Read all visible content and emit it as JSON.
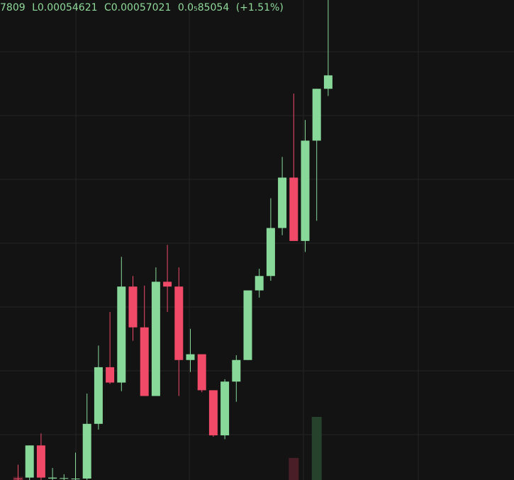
{
  "legend": {
    "open_fragment": "7809",
    "low": "L0.00054621",
    "close": "C0.00057021",
    "change_abs": "0.0₅85054",
    "change_pct": "(+1.51%)"
  },
  "colors": {
    "background": "#131313",
    "grid": "#242424",
    "up": "#88d89a",
    "down": "#f04a68",
    "volume_up": "#26422c",
    "volume_down": "#4a1e27",
    "legend_text": "#8fd99a"
  },
  "chart_data": {
    "type": "candlestick",
    "title": "",
    "xlabel": "",
    "ylabel": "",
    "grid": true,
    "price_axis": "hidden",
    "ylim": [
      0.0,
      100.0
    ],
    "candles": [
      {
        "o": 0.2,
        "h": 3.2,
        "l": -1.0,
        "c": 0.3,
        "dir": "down"
      },
      {
        "o": 0.5,
        "h": 7.2,
        "l": -1.0,
        "c": 7.2,
        "dir": "up"
      },
      {
        "o": 7.2,
        "h": 9.7,
        "l": -1.0,
        "c": 0.5,
        "dir": "down"
      },
      {
        "o": 0.3,
        "h": 2.5,
        "l": -1.0,
        "c": 0.5,
        "dir": "up"
      },
      {
        "o": 0.3,
        "h": 1.2,
        "l": -1.0,
        "c": 0.4,
        "dir": "up"
      },
      {
        "o": 0.2,
        "h": 5.7,
        "l": -1.0,
        "c": 0.3,
        "dir": "up"
      },
      {
        "o": 0.3,
        "h": 18.0,
        "l": -1.0,
        "c": 11.7,
        "dir": "up"
      },
      {
        "o": 11.7,
        "h": 28.0,
        "l": 10.5,
        "c": 23.5,
        "dir": "up"
      },
      {
        "o": 23.5,
        "h": 35.0,
        "l": 20.0,
        "c": 20.3,
        "dir": "down"
      },
      {
        "o": 20.3,
        "h": 46.5,
        "l": 18.5,
        "c": 40.3,
        "dir": "up"
      },
      {
        "o": 40.3,
        "h": 42.5,
        "l": 29.0,
        "c": 31.8,
        "dir": "down"
      },
      {
        "o": 31.8,
        "h": 40.5,
        "l": 17.5,
        "c": 17.5,
        "dir": "down"
      },
      {
        "o": 17.5,
        "h": 44.3,
        "l": 17.5,
        "c": 41.3,
        "dir": "up"
      },
      {
        "o": 41.3,
        "h": 49.0,
        "l": 35.0,
        "c": 40.3,
        "dir": "down"
      },
      {
        "o": 40.3,
        "h": 44.3,
        "l": 17.5,
        "c": 25.0,
        "dir": "down"
      },
      {
        "o": 25.0,
        "h": 31.5,
        "l": 22.5,
        "c": 26.2,
        "dir": "up"
      },
      {
        "o": 26.2,
        "h": 26.2,
        "l": 18.3,
        "c": 18.7,
        "dir": "down"
      },
      {
        "o": 18.7,
        "h": 18.7,
        "l": 9.0,
        "c": 9.3,
        "dir": "down"
      },
      {
        "o": 9.3,
        "h": 21.0,
        "l": 8.5,
        "c": 20.5,
        "dir": "up"
      },
      {
        "o": 20.5,
        "h": 26.0,
        "l": 16.3,
        "c": 25.0,
        "dir": "up"
      },
      {
        "o": 25.0,
        "h": 39.5,
        "l": 25.0,
        "c": 39.5,
        "dir": "up"
      },
      {
        "o": 39.5,
        "h": 44.0,
        "l": 38.0,
        "c": 42.5,
        "dir": "up"
      },
      {
        "o": 42.5,
        "h": 58.7,
        "l": 41.5,
        "c": 52.5,
        "dir": "up"
      },
      {
        "o": 52.5,
        "h": 67.3,
        "l": 51.0,
        "c": 63.0,
        "dir": "up"
      },
      {
        "o": 63.0,
        "h": 80.5,
        "l": 49.8,
        "c": 49.8,
        "dir": "down"
      },
      {
        "o": 49.8,
        "h": 75.0,
        "l": 47.5,
        "c": 70.7,
        "dir": "up"
      },
      {
        "o": 70.7,
        "h": 81.5,
        "l": 54.0,
        "c": 81.5,
        "dir": "up"
      },
      {
        "o": 81.5,
        "h": 100.0,
        "l": 80.0,
        "c": 84.3,
        "dir": "up"
      }
    ],
    "volume": [
      {
        "v": 1.0,
        "dir": "down"
      },
      {
        "v": 0.0,
        "dir": "up"
      },
      {
        "v": 0.0,
        "dir": "down"
      },
      {
        "v": 0.0,
        "dir": "up"
      },
      {
        "v": 0.0,
        "dir": "up"
      },
      {
        "v": 0.0,
        "dir": "up"
      },
      {
        "v": 0.0,
        "dir": "up"
      },
      {
        "v": 0.0,
        "dir": "up"
      },
      {
        "v": 0.0,
        "dir": "down"
      },
      {
        "v": 0.0,
        "dir": "up"
      },
      {
        "v": 0.0,
        "dir": "down"
      },
      {
        "v": 0.0,
        "dir": "down"
      },
      {
        "v": 0.0,
        "dir": "up"
      },
      {
        "v": 0.0,
        "dir": "down"
      },
      {
        "v": 0.0,
        "dir": "down"
      },
      {
        "v": 0.0,
        "dir": "up"
      },
      {
        "v": 0.0,
        "dir": "down"
      },
      {
        "v": 0.0,
        "dir": "down"
      },
      {
        "v": 0.0,
        "dir": "up"
      },
      {
        "v": 0.0,
        "dir": "up"
      },
      {
        "v": 0.0,
        "dir": "up"
      },
      {
        "v": 0.0,
        "dir": "up"
      },
      {
        "v": 0.0,
        "dir": "up"
      },
      {
        "v": 0.0,
        "dir": "up"
      },
      {
        "v": 7.0,
        "dir": "down"
      },
      {
        "v": 0.0,
        "dir": "up"
      },
      {
        "v": 20.0,
        "dir": "up"
      },
      {
        "v": 0.0,
        "dir": "up"
      }
    ]
  }
}
